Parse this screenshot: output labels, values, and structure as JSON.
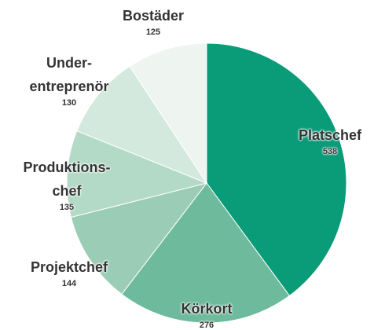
{
  "chart_data": {
    "type": "pie",
    "categories": [
      "Platschef",
      "Körkort",
      "Projektchef",
      "Produktions-\nchef",
      "Under-\nentreprenör",
      "Bostäder"
    ],
    "values": [
      538,
      276,
      144,
      135,
      130,
      125
    ],
    "colors": [
      "#0a9b78",
      "#6dba9c",
      "#9bcdb6",
      "#b3d9c7",
      "#d3e9de",
      "#eef5f1"
    ]
  }
}
